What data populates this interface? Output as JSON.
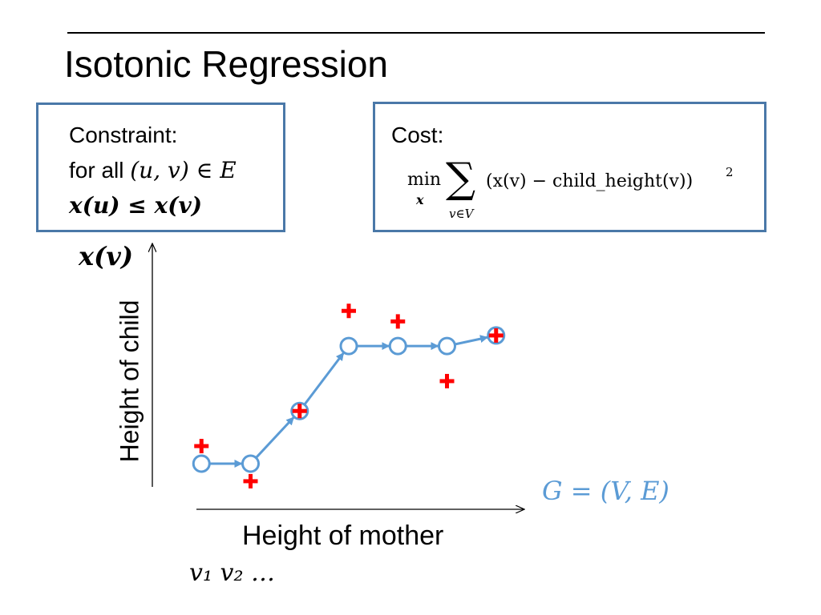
{
  "slide": {
    "title": "Isotonic Regression"
  },
  "constraint": {
    "heading": "Constraint:",
    "line2_prefix": "for all ",
    "line2_math": "(u, v) ∈ E",
    "line3_math": "x(u) ≤ x(v)"
  },
  "cost": {
    "heading": "Cost:",
    "min": "min",
    "min_sub": "x",
    "sum_symbol": "∑",
    "sum_sub": "v∈V",
    "expression": "(x(v) − child_height(v))",
    "exponent": "2"
  },
  "axes": {
    "y_var": "x(v)",
    "y_label": "Height of child",
    "x_label": "Height of mother",
    "x_sequence": "v₁  v₂  …"
  },
  "graph_label": "G = (V, E)",
  "colors": {
    "accent": "#5b9bd5",
    "node_stroke": "#5b9bd5",
    "data_marker": "#ff0000",
    "box_border": "#4a78a8"
  },
  "chart_data": {
    "type": "scatter",
    "x": [
      1,
      2,
      3,
      4,
      5,
      6,
      7
    ],
    "observed": [
      0.36,
      0.16,
      0.56,
      1.13,
      1.07,
      0.73,
      0.99
    ],
    "fitted": [
      0.26,
      0.26,
      0.56,
      0.93,
      0.93,
      0.93,
      0.99
    ],
    "edges": [
      [
        0,
        1
      ],
      [
        1,
        2
      ],
      [
        2,
        3
      ],
      [
        3,
        4
      ],
      [
        4,
        5
      ],
      [
        5,
        6
      ]
    ],
    "xlim": [
      0.0,
      8.0
    ],
    "ylim": [
      0.0,
      1.35
    ]
  }
}
